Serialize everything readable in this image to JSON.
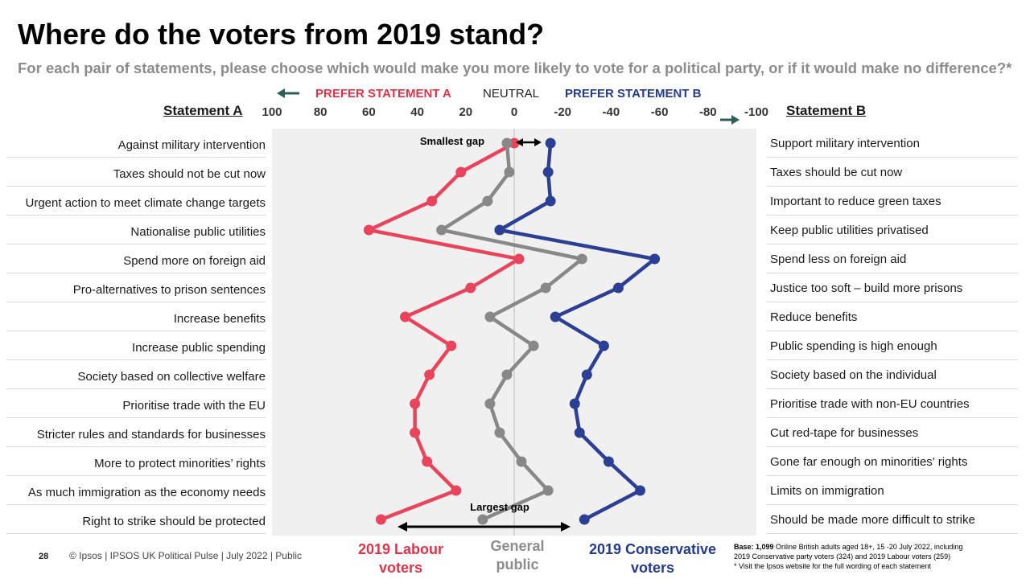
{
  "title": "Where do the voters from 2019 stand?",
  "subtitle": "For each pair of statements, please choose which would make you more likely to vote for a political party, or if it would make no difference?*",
  "legend_top": {
    "prefer_a": "PREFER STATEMENT A",
    "neutral": "NEUTRAL",
    "prefer_b": "PREFER STATEMENT B"
  },
  "column_headers": {
    "a": "Statement A",
    "b": "Statement B"
  },
  "annotations": {
    "smallest_gap": "Smallest gap",
    "largest_gap": "Largest gap"
  },
  "series_labels": {
    "labour": "2019 Labour voters",
    "general": "General public",
    "conservative": "2019 Conservative voters"
  },
  "colors": {
    "labour": "#e8455c",
    "general": "#888888",
    "conservative": "#2b3f94",
    "arrow": "#2f5d57",
    "plot_bg": "#f0f0f0"
  },
  "footer": {
    "page_number": "28",
    "text": "© Ipsos |  IPSOS UK Political Pulse | July 2022 | Public",
    "base_bold": "Base: 1,099",
    "base_rest": " Online British adults aged 18+, 15 -20 July 2022, including",
    "base_line2": "2019 Conservative party voters (324) and 2019 Labour voters (259)",
    "base_line3": "* Visit the Ipsos website for the full wording of each statement"
  },
  "chart_data": {
    "type": "line",
    "orientation": "horizontal",
    "title": "Where do the voters from 2019 stand?",
    "xlabel": "",
    "xlim": [
      100,
      -100
    ],
    "x_ticks": [
      100,
      80,
      60,
      40,
      20,
      0,
      -20,
      -40,
      -60,
      -80,
      -100
    ],
    "x_tick_labels": [
      "100",
      "80",
      "60",
      "40",
      "20",
      "0",
      "-20",
      "-40",
      "-60",
      "-80",
      "-100"
    ],
    "categories_a": [
      "Against military intervention",
      "Taxes should not be cut now",
      "Urgent action to meet climate change targets",
      "Nationalise public utilities",
      "Spend more on foreign aid",
      "Pro-alternatives to prison sentences",
      "Increase benefits",
      "Increase public spending",
      "Society based on collective welfare",
      "Prioritise trade with the EU",
      "Stricter rules and standards for businesses",
      "More to protect minorities’ rights",
      "As much immigration as the economy needs",
      "Right to strike should be protected"
    ],
    "categories_b": [
      "Support military intervention",
      "Taxes should be cut now",
      "Important to reduce green taxes",
      "Keep public utilities privatised",
      "Spend less on foreign aid",
      "Justice too soft – build more prisons",
      "Reduce benefits",
      "Public spending is high enough",
      "Society based on the individual",
      "Prioritise trade with non-EU countries",
      "Cut red-tape for businesses",
      "Gone far enough on minorities’ rights",
      "Limits on immigration",
      "Should be made more difficult to strike"
    ],
    "series": [
      {
        "name": "2019 Labour voters",
        "key": "labour",
        "values": [
          0,
          22,
          34,
          60,
          -2,
          18,
          45,
          26,
          35,
          41,
          41,
          36,
          24,
          55
        ]
      },
      {
        "name": "General public",
        "key": "general",
        "values": [
          3,
          2,
          11,
          30,
          -28,
          -13,
          10,
          -8,
          3,
          10,
          6,
          -3,
          -14,
          13
        ]
      },
      {
        "name": "2019 Conservative voters",
        "key": "conservative",
        "values": [
          -15,
          -14,
          -15,
          6,
          -58,
          -43,
          -17,
          -37,
          -30,
          -25,
          -27,
          -39,
          -52,
          -29
        ]
      }
    ]
  }
}
